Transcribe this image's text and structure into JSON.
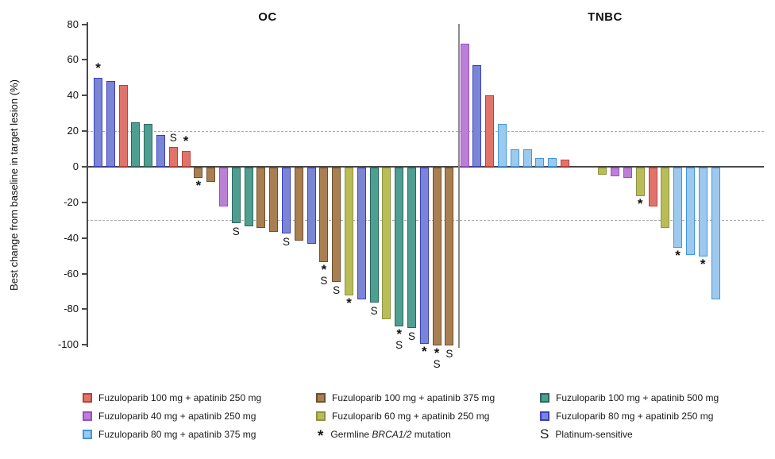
{
  "chart_data": {
    "type": "bar",
    "subtype": "waterfall",
    "ylabel": "Best change from baseline in target lesion (%)",
    "ylim": [
      -105,
      80
    ],
    "yticks": [
      80,
      60,
      40,
      20,
      0,
      -20,
      -40,
      -60,
      -80,
      -100
    ],
    "reference_lines_pct": [
      20,
      -30
    ],
    "grid": false,
    "legend_position": "bottom",
    "flag_symbols": {
      "brca": "*",
      "ps": "S"
    },
    "series_colors": {
      "red": {
        "fill": "#E0746B",
        "stroke": "#BE3E3C"
      },
      "purple": {
        "fill": "#BB80D5",
        "stroke": "#9B4DC8"
      },
      "lightblue": {
        "fill": "#9CC9ED",
        "stroke": "#3F97E0"
      },
      "brown": {
        "fill": "#A97F52",
        "stroke": "#6E4F2D"
      },
      "olive": {
        "fill": "#B9BD58",
        "stroke": "#8E9340"
      },
      "teal": {
        "fill": "#4F9E92",
        "stroke": "#2B675D"
      },
      "blue": {
        "fill": "#7A86D3",
        "stroke": "#3B3FC4"
      }
    },
    "groups": [
      {
        "name": "OC",
        "bars": [
          {
            "series": "blue",
            "value": 50,
            "flags": [
              "brca"
            ]
          },
          {
            "series": "blue",
            "value": 48
          },
          {
            "series": "red",
            "value": 46
          },
          {
            "series": "teal",
            "value": 25
          },
          {
            "series": "teal",
            "value": 24
          },
          {
            "series": "blue",
            "value": 18
          },
          {
            "series": "red",
            "value": 11,
            "flags": [
              "ps"
            ]
          },
          {
            "series": "red",
            "value": 9,
            "flags": [
              "brca"
            ]
          },
          {
            "series": "brown",
            "value": -6,
            "flags": [
              "brca"
            ]
          },
          {
            "series": "brown",
            "value": -8
          },
          {
            "series": "purple",
            "value": -22
          },
          {
            "series": "teal",
            "value": -31,
            "flags": [
              "ps"
            ]
          },
          {
            "series": "teal",
            "value": -33
          },
          {
            "series": "brown",
            "value": -34
          },
          {
            "series": "brown",
            "value": -36
          },
          {
            "series": "blue",
            "value": -37,
            "flags": [
              "ps"
            ]
          },
          {
            "series": "brown",
            "value": -41
          },
          {
            "series": "blue",
            "value": -43
          },
          {
            "series": "brown",
            "value": -53,
            "flags": [
              "brca",
              "ps"
            ]
          },
          {
            "series": "brown",
            "value": -64,
            "flags": [
              "ps"
            ]
          },
          {
            "series": "olive",
            "value": -72,
            "flags": [
              "brca"
            ]
          },
          {
            "series": "blue",
            "value": -74
          },
          {
            "series": "teal",
            "value": -76,
            "flags": [
              "ps"
            ]
          },
          {
            "series": "olive",
            "value": -85
          },
          {
            "series": "teal",
            "value": -89,
            "flags": [
              "brca",
              "ps"
            ]
          },
          {
            "series": "teal",
            "value": -90,
            "flags": [
              "ps"
            ]
          },
          {
            "series": "blue",
            "value": -99,
            "flags": [
              "brca"
            ]
          },
          {
            "series": "brown",
            "value": -100,
            "flags": [
              "brca",
              "ps"
            ]
          },
          {
            "series": "brown",
            "value": -100,
            "flags": [
              "ps"
            ]
          }
        ]
      },
      {
        "name": "TNBC",
        "bars": [
          {
            "series": "purple",
            "value": 69
          },
          {
            "series": "blue",
            "value": 57
          },
          {
            "series": "red",
            "value": 40
          },
          {
            "series": "lightblue",
            "value": 24
          },
          {
            "series": "lightblue",
            "value": 10
          },
          {
            "series": "lightblue",
            "value": 10
          },
          {
            "series": "lightblue",
            "value": 5
          },
          {
            "series": "lightblue",
            "value": 5
          },
          {
            "series": "red",
            "value": 4
          },
          {
            "series": "olive",
            "value": -4,
            "gap_before": 2
          },
          {
            "series": "purple",
            "value": -5
          },
          {
            "series": "purple",
            "value": -6
          },
          {
            "series": "olive",
            "value": -16,
            "flags": [
              "brca"
            ]
          },
          {
            "series": "red",
            "value": -22
          },
          {
            "series": "olive",
            "value": -34
          },
          {
            "series": "lightblue",
            "value": -45,
            "flags": [
              "brca"
            ]
          },
          {
            "series": "lightblue",
            "value": -49
          },
          {
            "series": "lightblue",
            "value": -50,
            "flags": [
              "brca"
            ]
          },
          {
            "series": "lightblue",
            "value": -74
          }
        ]
      }
    ],
    "legend": [
      {
        "type": "color",
        "series": "red",
        "label": "Fuzuloparib 100 mg + apatinib 250 mg"
      },
      {
        "type": "color",
        "series": "brown",
        "label": "Fuzuloparib 100 mg + apatinib 375 mg"
      },
      {
        "type": "color",
        "series": "teal",
        "label": "Fuzuloparib 100 mg + apatinib 500 mg"
      },
      {
        "type": "color",
        "series": "purple",
        "label": "Fuzuloparib 40 mg + apatinib 250 mg"
      },
      {
        "type": "color",
        "series": "olive",
        "label": "Fuzuloparib 60 mg + apatinib 250 mg"
      },
      {
        "type": "color",
        "series": "blue",
        "label": "Fuzuloparib 80 mg + apatinib 250 mg"
      },
      {
        "type": "color",
        "series": "lightblue",
        "label": "Fuzuloparib 80 mg + apatinib 375 mg"
      },
      {
        "type": "star",
        "label_prefix": "Germline ",
        "label_italic": "BRCA1/2",
        "label_suffix": " mutation"
      },
      {
        "type": "s",
        "label": "Platinum-sensitive"
      }
    ]
  }
}
